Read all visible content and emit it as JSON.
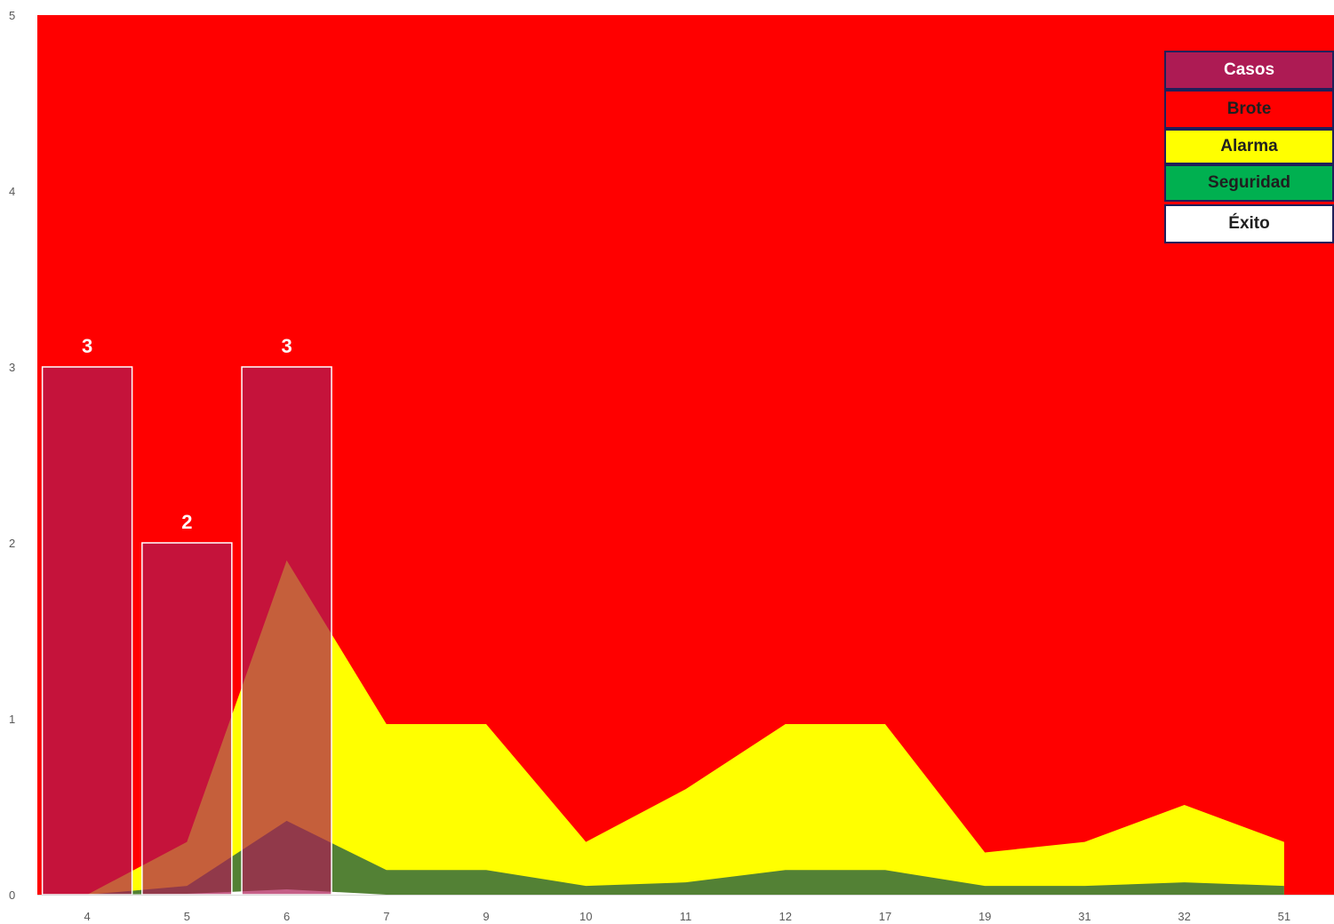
{
  "chart_data": {
    "type": "area",
    "categories": [
      "4",
      "5",
      "6",
      "7",
      "9",
      "10",
      "11",
      "12",
      "17",
      "19",
      "31",
      "32",
      "51"
    ],
    "ylim": [
      0,
      5
    ],
    "yticks": [
      "0",
      "1",
      "2",
      "3",
      "4",
      "5"
    ],
    "series": [
      {
        "name": "Brote",
        "color": "#ff0000",
        "kind": "area",
        "values": [
          5,
          5,
          5,
          5,
          5,
          5,
          5,
          5,
          5,
          5,
          5,
          5,
          5
        ]
      },
      {
        "name": "Alarma",
        "color": "#ffff00",
        "kind": "area",
        "values": [
          0,
          0.3,
          1.9,
          0.97,
          0.97,
          0.3,
          0.6,
          0.97,
          0.97,
          0.24,
          0.3,
          0.51,
          0.3
        ]
      },
      {
        "name": "Seguridad",
        "color": "#538135",
        "kind": "area",
        "values": [
          0,
          0.05,
          0.42,
          0.14,
          0.14,
          0.05,
          0.07,
          0.14,
          0.14,
          0.05,
          0.05,
          0.07,
          0.05
        ]
      },
      {
        "name": "Éxito",
        "color": "#ffffff",
        "kind": "area",
        "values": [
          0,
          0.005,
          0.03,
          0,
          0,
          0,
          0,
          0,
          0,
          0,
          0,
          0,
          0
        ]
      },
      {
        "name": "Casos",
        "color": "#ad1b54",
        "kind": "bar",
        "values": [
          3,
          2,
          3,
          null,
          null,
          null,
          null,
          null,
          null,
          null,
          null,
          null,
          null
        ],
        "labels": [
          "3",
          "2",
          "3"
        ]
      }
    ]
  },
  "legend": {
    "items": [
      {
        "label": "Casos",
        "bg": "#ad1b54",
        "fg": "#ffffff"
      },
      {
        "label": "Brote",
        "bg": "#ff0000",
        "fg": "#1f1f1f"
      },
      {
        "label": "Alarma",
        "bg": "#ffff00",
        "fg": "#1f1f1f"
      },
      {
        "label": "Seguridad",
        "bg": "#00b050",
        "fg": "#1f1f1f"
      },
      {
        "label": "Éxito",
        "bg": "#ffffff",
        "fg": "#1f1f1f"
      }
    ]
  }
}
